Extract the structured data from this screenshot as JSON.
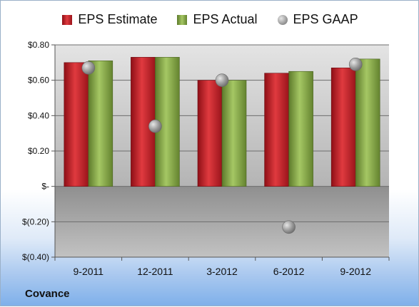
{
  "company": "Covance",
  "chart_data": {
    "type": "bar",
    "categories": [
      "9-2011",
      "12-2011",
      "3-2012",
      "6-2012",
      "9-2012"
    ],
    "series": [
      {
        "name": "EPS Estimate",
        "values": [
          0.7,
          0.73,
          0.6,
          0.64,
          0.67
        ],
        "color": "#d0202a",
        "kind": "bar"
      },
      {
        "name": "EPS Actual",
        "values": [
          0.71,
          0.73,
          0.6,
          0.65,
          0.72
        ],
        "color": "#8db04a",
        "kind": "bar"
      },
      {
        "name": "EPS GAAP",
        "values": [
          0.67,
          0.34,
          0.6,
          -0.23,
          0.69
        ],
        "color": "#9a9a9a",
        "kind": "marker"
      }
    ],
    "ylim": [
      -0.4,
      0.8
    ],
    "yticks": [
      0.8,
      0.6,
      0.4,
      0.2,
      0.0,
      -0.2,
      -0.4
    ],
    "ytick_labels": [
      "$0.80",
      "$0.60",
      "$0.40",
      "$0.20",
      "$-",
      "$(0.20)",
      "$(0.40)"
    ],
    "grid": true,
    "legend_position": "top-center"
  }
}
